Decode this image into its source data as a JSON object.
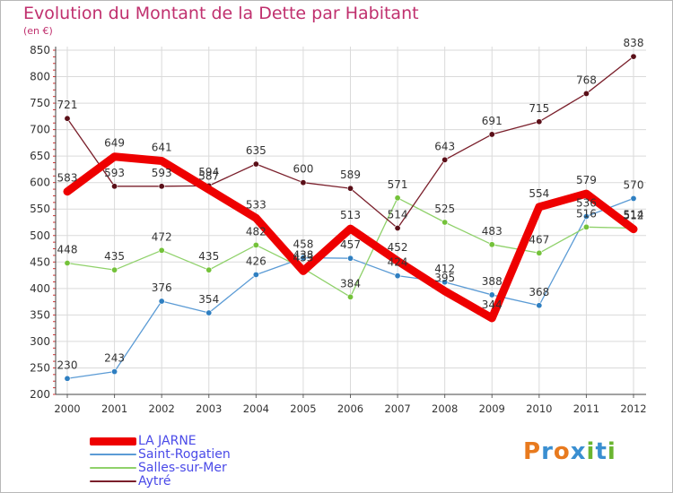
{
  "header": {
    "title": "Evolution du Montant de la Dette par Habitant",
    "subtitle": "(en €)"
  },
  "logo": {
    "text": "Proxiti",
    "letters": [
      "P",
      "r",
      "o",
      "x",
      "i",
      "t",
      "i"
    ],
    "colors": [
      "#e87a1e",
      "#3a8fd1",
      "#e87a1e",
      "#3a8fd1",
      "#6ab530",
      "#3a8fd1",
      "#6ab530"
    ]
  },
  "chart_data": {
    "type": "line",
    "title": "Evolution du Montant de la Dette par Habitant",
    "ylabel": "(en €)",
    "x": [
      "2000",
      "2001",
      "2002",
      "2003",
      "2004",
      "2005",
      "2006",
      "2007",
      "2008",
      "2009",
      "2010",
      "2011",
      "2012"
    ],
    "ylim": [
      200,
      850
    ],
    "yticks": [
      200,
      250,
      300,
      350,
      400,
      450,
      500,
      550,
      600,
      650,
      700,
      750,
      800,
      850
    ],
    "grid": true,
    "legend_position": "bottom-left",
    "series": [
      {
        "name": "LA JARNE",
        "color": "#ee0000",
        "values": [
          583,
          649,
          641,
          587,
          533,
          433,
          513,
          452,
          395,
          344,
          554,
          579,
          512
        ],
        "labels": [
          "583",
          "649",
          "641",
          "587",
          "533",
          "433",
          "513",
          "452",
          "395",
          "344",
          "554",
          "579",
          "512"
        ]
      },
      {
        "name": "Saint-Rogatien",
        "color": "#5b9bd5",
        "values": [
          230,
          243,
          376,
          354,
          426,
          458,
          457,
          424,
          412,
          388,
          368,
          536,
          570
        ],
        "labels": [
          "230",
          "243",
          "376",
          "354",
          "426",
          "458",
          "457",
          "424",
          "412",
          "388",
          "368",
          "536",
          "570"
        ]
      },
      {
        "name": "Salles-sur-Mer",
        "color": "#8fd16a",
        "values": [
          448,
          435,
          472,
          435,
          482,
          438,
          384,
          571,
          525,
          483,
          467,
          516,
          514
        ],
        "labels": [
          "448",
          "435",
          "472",
          "435",
          "482",
          "438",
          "384",
          "571",
          "525",
          "483",
          "467",
          "516",
          "514"
        ]
      },
      {
        "name": "Aytré",
        "color": "#7a1f2b",
        "values": [
          721,
          593,
          593,
          594,
          635,
          600,
          589,
          514,
          643,
          691,
          715,
          768,
          838
        ],
        "labels": [
          "721",
          "593",
          "593",
          "594",
          "635",
          "600",
          "589",
          "514",
          "643",
          "691",
          "715",
          "768",
          "838"
        ]
      }
    ]
  }
}
